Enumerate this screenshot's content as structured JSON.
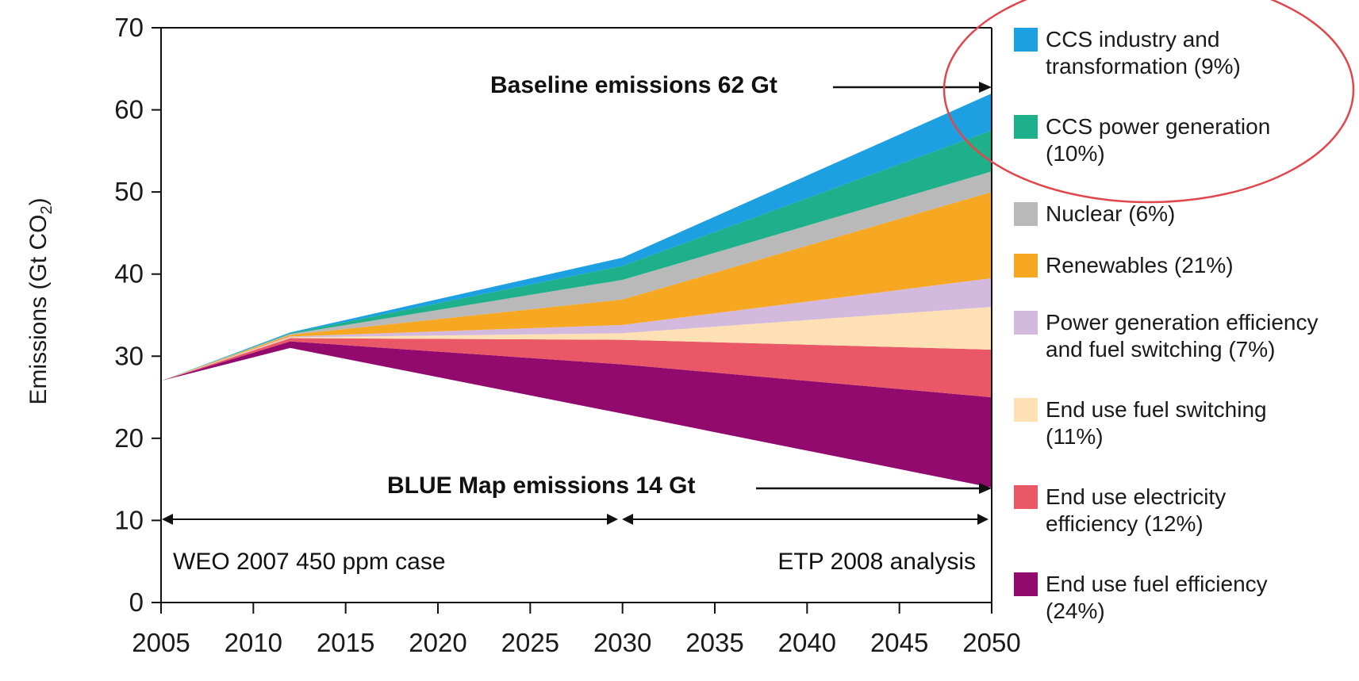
{
  "chart_data": {
    "type": "area",
    "ylabel_main": "Emissions (Gt CO",
    "ylabel_sub": "2",
    "ylabel_tail": ")",
    "ylim": [
      0,
      70
    ],
    "yticks": [
      0,
      10,
      20,
      30,
      40,
      50,
      60,
      70
    ],
    "xlim": [
      2005,
      2050
    ],
    "xticks": [
      2005,
      2010,
      2015,
      2020,
      2025,
      2030,
      2035,
      2040,
      2045,
      2050
    ],
    "grid": false,
    "x": [
      2005,
      2012,
      2030,
      2050
    ],
    "boundaries": [
      14.0,
      25.0,
      30.8,
      36.0,
      39.5,
      50.0,
      52.5,
      57.5,
      62.0
    ],
    "boundary_start": [
      27,
      31,
      23
    ],
    "series": [
      {
        "name": "End use fuel efficiency",
        "share": "(24%)",
        "color": "#930a6e",
        "lower": [
          27,
          31,
          23,
          14.0
        ],
        "upper": [
          27,
          31.8,
          29.0,
          25.0
        ]
      },
      {
        "name": "End use electricity efficiency",
        "share": "(12%)",
        "color": "#ea5767",
        "lower": [
          27,
          31.8,
          29.0,
          25.0
        ],
        "upper": [
          27,
          32.2,
          32.0,
          30.8
        ]
      },
      {
        "name": "End use fuel switching",
        "share": "(11%)",
        "color": "#fde0b4",
        "lower": [
          27,
          32.2,
          32.0,
          30.8
        ],
        "upper": [
          27,
          32.3,
          32.8,
          36.0
        ]
      },
      {
        "name": "Power generation efficiency and fuel switching",
        "share": "(7%)",
        "color": "#d3b9de",
        "lower": [
          27,
          32.3,
          32.8,
          36.0
        ],
        "upper": [
          27,
          32.4,
          33.8,
          39.5
        ]
      },
      {
        "name": "Renewables",
        "share": "(21%)",
        "color": "#f7a823",
        "lower": [
          27,
          32.4,
          33.8,
          39.5
        ],
        "upper": [
          27,
          32.6,
          36.9,
          50.0
        ]
      },
      {
        "name": "Nuclear",
        "share": "(6%)",
        "color": "#b9b9b9",
        "lower": [
          27,
          32.6,
          36.9,
          50.0
        ],
        "upper": [
          27,
          32.7,
          39.3,
          52.5
        ]
      },
      {
        "name": "CCS power generation",
        "share": "(10%)",
        "color": "#1eb08a",
        "lower": [
          27,
          32.7,
          39.3,
          52.5
        ],
        "upper": [
          27,
          32.8,
          41.0,
          57.5
        ]
      },
      {
        "name": "CCS industry and transformation",
        "share": "(9%)",
        "color": "#1ca0e2",
        "lower": [
          27,
          32.8,
          41.0,
          57.5
        ],
        "upper": [
          27,
          32.9,
          42.0,
          62.0
        ]
      }
    ],
    "legend": [
      {
        "line1": "CCS industry and",
        "line2": "transformation (9%)",
        "color": "#1ca0e2"
      },
      {
        "line1": "CCS power generation",
        "line2": "(10%)",
        "color": "#1eb08a"
      },
      {
        "line1": "Nuclear (6%)",
        "line2": "",
        "color": "#b9b9b9"
      },
      {
        "line1": "Renewables (21%)",
        "line2": "",
        "color": "#f7a823"
      },
      {
        "line1": "Power generation efficiency",
        "line2": "and fuel switching (7%)",
        "color": "#d3b9de"
      },
      {
        "line1": "End use fuel switching",
        "line2": "(11%)",
        "color": "#fde0b4"
      },
      {
        "line1": "End use electricity",
        "line2": "efficiency (12%)",
        "color": "#ea5767"
      },
      {
        "line1": "End use fuel efficiency",
        "line2": "(24%)",
        "color": "#930a6e"
      }
    ],
    "legend_highlight_color": "#e0474c",
    "annotations": {
      "baseline": "Baseline emissions 62 Gt",
      "blue_map": "BLUE Map emissions 14 Gt",
      "weo": "WEO 2007 450 ppm case",
      "etp": "ETP 2008 analysis"
    },
    "periods": [
      {
        "label": "WEO 2007 450 ppm case",
        "from": 2005,
        "to": 2030
      },
      {
        "label": "ETP 2008 analysis",
        "from": 2030,
        "to": 2050
      }
    ]
  }
}
